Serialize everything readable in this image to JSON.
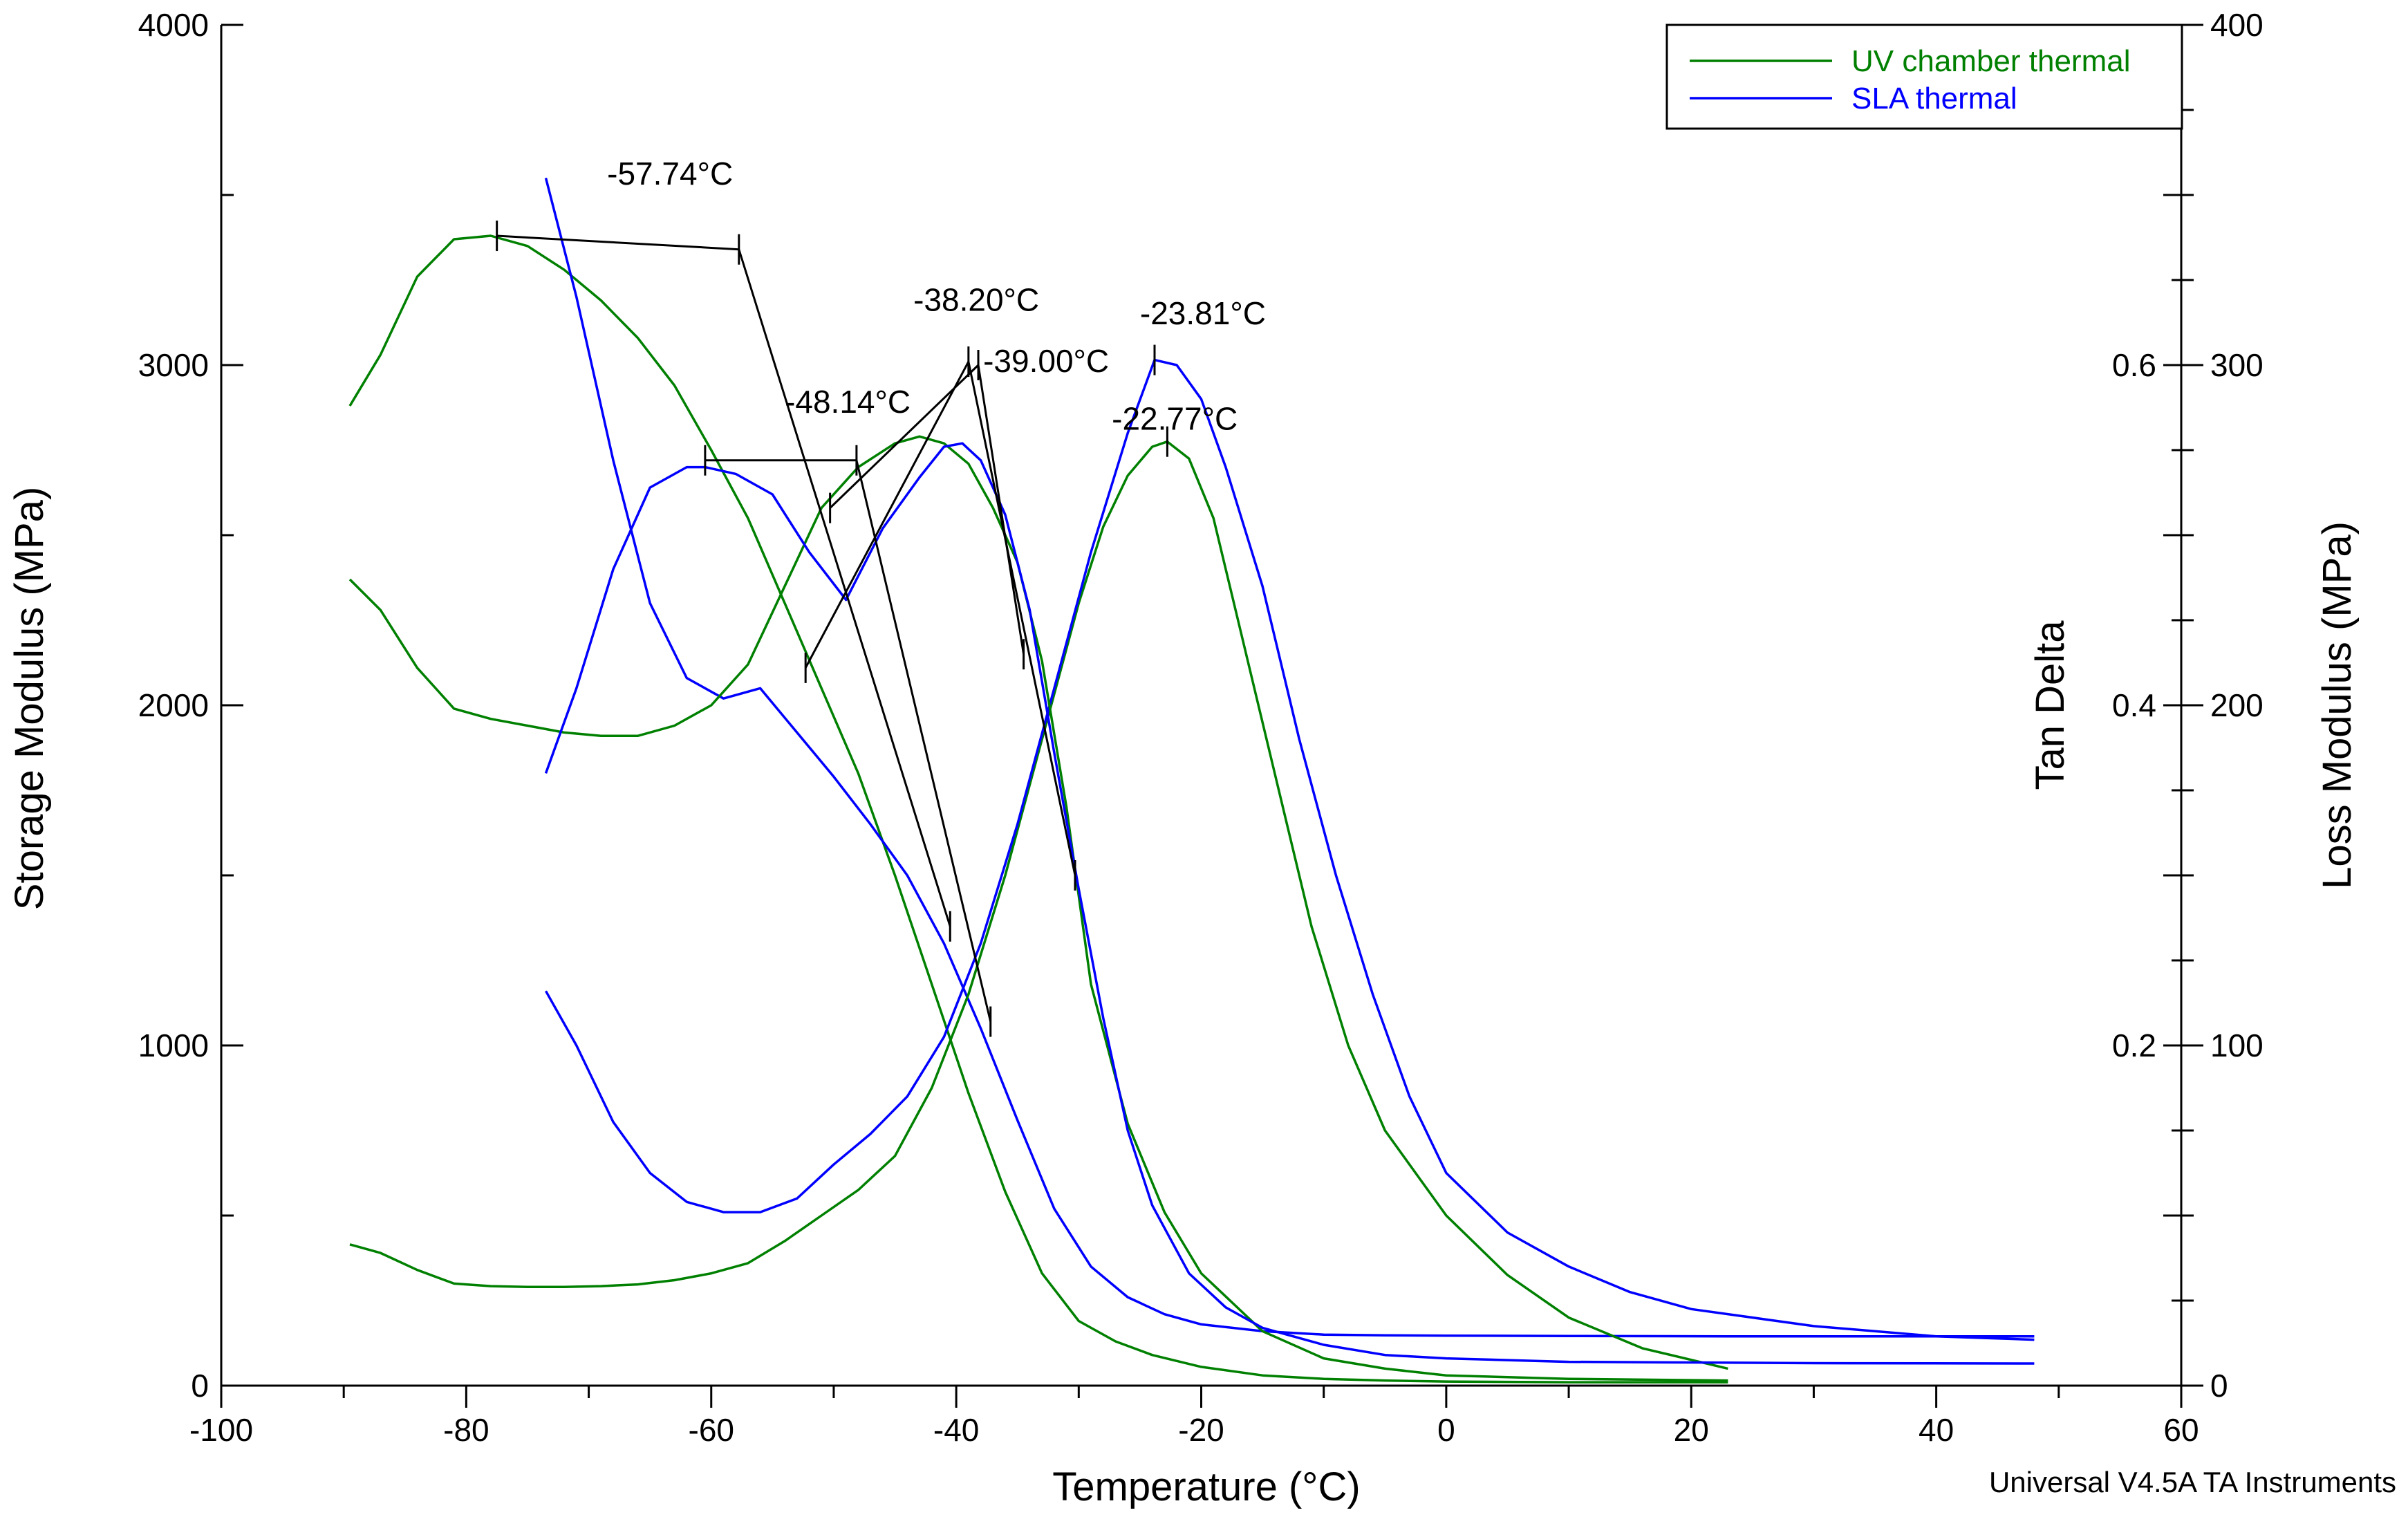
{
  "chart_data": {
    "type": "line",
    "title": "",
    "xlabel": "Temperature (°C)",
    "ylabel_left": "Storage Modulus (MPa)",
    "ylabel_tan": "Tan Delta",
    "ylabel_right": "Loss Modulus (MPa)",
    "footer": "Universal V4.5A TA Instruments",
    "xlim": [
      -100,
      60
    ],
    "ylim_storage": [
      0,
      4000
    ],
    "ylim_tan": [
      0,
      0.8
    ],
    "ylim_loss": [
      0,
      400
    ],
    "x_ticks": [
      -100,
      -80,
      -60,
      -40,
      -20,
      0,
      20,
      40,
      60
    ],
    "x_ticklabels": [
      "-100",
      "-80",
      "-60",
      "-40",
      "-20",
      "0",
      "20",
      "40",
      "60"
    ],
    "y_storage_ticks": [
      0,
      1000,
      2000,
      3000,
      4000
    ],
    "y_storage_ticklabels": [
      "0",
      "1000",
      "2000",
      "3000",
      "4000"
    ],
    "y_tan_ticks": [
      0.2,
      0.4,
      0.6
    ],
    "y_tan_ticklabels": [
      "0.2",
      "0.4",
      "0.6"
    ],
    "y_loss_ticks": [
      0,
      100,
      200,
      300,
      400
    ],
    "y_loss_ticklabels": [
      "0",
      "100",
      "200",
      "300",
      "400"
    ],
    "legend": {
      "position": "top-right",
      "entries": [
        {
          "label": "UV chamber thermal",
          "color": "#008000"
        },
        {
          "label": "SLA thermal",
          "color": "#0000ff"
        }
      ]
    },
    "series": [
      {
        "name": "UV chamber thermal - Storage Modulus",
        "color": "#008000",
        "axis": "storage",
        "x": [
          -89.5,
          -87,
          -84,
          -81,
          -78,
          -75,
          -72,
          -69,
          -66,
          -63,
          -60,
          -57,
          -54,
          -51,
          -48,
          -45,
          -42,
          -39,
          -36,
          -33,
          -30,
          -27,
          -24,
          -20,
          -15,
          -10,
          -5,
          0,
          10,
          23
        ],
        "y": [
          2880,
          3030,
          3260,
          3370,
          3380,
          3350,
          3280,
          3190,
          3080,
          2940,
          2750,
          2550,
          2300,
          2050,
          1800,
          1500,
          1180,
          860,
          570,
          330,
          190,
          130,
          90,
          55,
          30,
          20,
          15,
          12,
          10,
          10
        ]
      },
      {
        "name": "SLA thermal - Storage Modulus",
        "color": "#0000ff",
        "axis": "storage",
        "x": [
          -73.5,
          -71,
          -68,
          -65,
          -62,
          -59,
          -56,
          -53,
          -50,
          -47,
          -44,
          -41,
          -38,
          -35,
          -32,
          -29,
          -26,
          -23,
          -20,
          -15,
          -10,
          -5,
          0,
          10,
          23,
          48
        ],
        "y": [
          3550,
          3200,
          2720,
          2300,
          2080,
          2020,
          2050,
          1920,
          1790,
          1650,
          1500,
          1300,
          1050,
          780,
          520,
          350,
          260,
          210,
          180,
          160,
          150,
          148,
          147,
          146,
          145,
          145
        ]
      },
      {
        "name": "UV chamber thermal - Tan Delta",
        "color": "#008000",
        "axis": "tan",
        "x": [
          -89.5,
          -87,
          -84,
          -81,
          -78,
          -75,
          -72,
          -69,
          -66,
          -63,
          -60,
          -57,
          -54,
          -51,
          -48,
          -45,
          -42,
          -39,
          -36,
          -33,
          -30,
          -28,
          -26,
          -24,
          -22.77,
          -21,
          -19,
          -17,
          -14,
          -11,
          -8,
          -5,
          0,
          5,
          10,
          16,
          23
        ],
        "y": [
          0.083,
          0.078,
          0.068,
          0.06,
          0.0585,
          0.058,
          0.058,
          0.0585,
          0.0595,
          0.062,
          0.066,
          0.072,
          0.085,
          0.1,
          0.115,
          0.135,
          0.175,
          0.23,
          0.3,
          0.38,
          0.46,
          0.505,
          0.535,
          0.552,
          0.555,
          0.545,
          0.51,
          0.45,
          0.36,
          0.27,
          0.2,
          0.15,
          0.1,
          0.065,
          0.04,
          0.022,
          0.01
        ]
      },
      {
        "name": "SLA thermal - Tan Delta",
        "color": "#0000ff",
        "axis": "tan",
        "x": [
          -73.5,
          -71,
          -68,
          -65,
          -62,
          -59,
          -56,
          -53,
          -50,
          -47,
          -44,
          -41,
          -38,
          -35,
          -32,
          -29,
          -26,
          -23.81,
          -22,
          -20,
          -18,
          -15,
          -12,
          -9,
          -6,
          -3,
          0,
          5,
          10,
          15,
          20,
          30,
          40,
          48
        ],
        "y": [
          0.232,
          0.2,
          0.155,
          0.125,
          0.108,
          0.102,
          0.102,
          0.11,
          0.13,
          0.148,
          0.17,
          0.205,
          0.26,
          0.33,
          0.41,
          0.49,
          0.56,
          0.603,
          0.6,
          0.58,
          0.54,
          0.47,
          0.38,
          0.3,
          0.23,
          0.17,
          0.125,
          0.09,
          0.07,
          0.055,
          0.045,
          0.035,
          0.029,
          0.027
        ]
      },
      {
        "name": "UV chamber thermal - Loss Modulus",
        "color": "#008000",
        "axis": "loss",
        "x": [
          -89.5,
          -87,
          -84,
          -81,
          -78,
          -75,
          -72,
          -69,
          -66,
          -63,
          -60,
          -57,
          -54,
          -51,
          -48,
          -45,
          -43,
          -41,
          -39,
          -37,
          -35,
          -33,
          -31,
          -29,
          -26,
          -23,
          -20,
          -15,
          -10,
          -5,
          0,
          10,
          23
        ],
        "y": [
          237,
          228,
          211,
          199,
          196,
          194,
          192,
          191,
          191,
          194,
          200,
          212,
          235,
          258,
          270,
          277,
          279,
          277,
          271,
          258,
          242,
          213,
          170,
          118,
          77,
          51,
          33,
          16,
          8,
          5,
          3,
          2,
          1.5
        ]
      },
      {
        "name": "SLA thermal - Loss Modulus",
        "color": "#0000ff",
        "axis": "loss",
        "x": [
          -73.5,
          -71,
          -68,
          -65,
          -62,
          -60.5,
          -58,
          -55,
          -52,
          -49,
          -46,
          -43,
          -41,
          -39.5,
          -38,
          -36,
          -34,
          -32,
          -30,
          -28,
          -26,
          -24,
          -21,
          -18,
          -15,
          -10,
          -5,
          0,
          5,
          10,
          20,
          30,
          48
        ],
        "y": [
          180,
          205,
          240,
          264,
          270,
          270,
          268,
          262,
          245,
          231,
          252,
          267,
          276,
          277,
          272,
          256,
          228,
          186,
          146,
          108,
          75,
          53,
          33,
          23,
          17,
          12,
          9,
          8,
          7.5,
          7,
          6.8,
          6.6,
          6.5
        ]
      }
    ],
    "annotations": [
      {
        "label": "-57.74°C",
        "value": -57.74
      },
      {
        "label": "-48.14°C",
        "value": -48.14
      },
      {
        "label": "-38.20°C",
        "value": -38.2
      },
      {
        "label": "-39.00°C",
        "value": -39.0
      },
      {
        "label": "-23.81°C",
        "value": -23.81
      },
      {
        "label": "-22.77°C",
        "value": -22.77
      }
    ]
  }
}
